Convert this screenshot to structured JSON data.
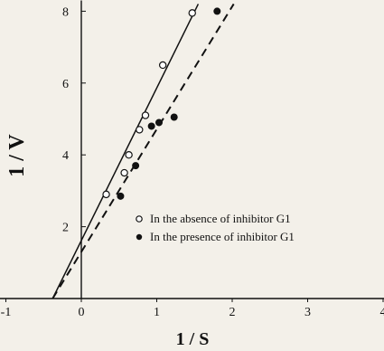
{
  "chart_data": {
    "type": "scatter",
    "xlabel": "1 / S",
    "ylabel": "1 / V",
    "xlim": [
      -1.2,
      4.1
    ],
    "ylim": [
      0,
      8.2
    ],
    "x_ticks": [
      -1,
      0,
      1,
      2,
      3,
      4
    ],
    "y_ticks": [
      2,
      4,
      6,
      8
    ],
    "grid": false,
    "legend_position": "center-right",
    "series": [
      {
        "name": "In the absence of inhibitor G1",
        "marker": "open-circle",
        "line": "solid",
        "points": [
          {
            "x": 0.33,
            "y": 2.9
          },
          {
            "x": 0.57,
            "y": 3.5
          },
          {
            "x": 0.63,
            "y": 4.0
          },
          {
            "x": 0.77,
            "y": 4.7
          },
          {
            "x": 0.85,
            "y": 5.1
          },
          {
            "x": 1.08,
            "y": 6.5
          },
          {
            "x": 1.47,
            "y": 7.95
          }
        ],
        "fit_line": [
          {
            "x": -0.38,
            "y": 0
          },
          {
            "x": 1.55,
            "y": 8.2
          }
        ]
      },
      {
        "name": "In the presence of inhibitor G1",
        "marker": "filled-circle",
        "line": "dashed",
        "points": [
          {
            "x": 0.52,
            "y": 2.85
          },
          {
            "x": 0.72,
            "y": 3.7
          },
          {
            "x": 0.93,
            "y": 4.8
          },
          {
            "x": 1.03,
            "y": 4.9
          },
          {
            "x": 1.23,
            "y": 5.05
          },
          {
            "x": 1.8,
            "y": 8.0
          }
        ],
        "fit_line": [
          {
            "x": -0.38,
            "y": 0
          },
          {
            "x": 2.02,
            "y": 8.2
          }
        ]
      }
    ],
    "colors": {
      "open_marker": "#ffffff",
      "filled_marker": "#111111",
      "line": "#111111"
    }
  }
}
